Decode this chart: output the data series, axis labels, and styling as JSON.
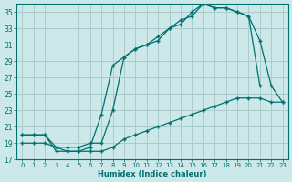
{
  "xlabel": "Humidex (Indice chaleur)",
  "bg_color": "#cce8e8",
  "grid_color": "#aacccc",
  "line_color": "#007070",
  "xlim": [
    -0.5,
    23.5
  ],
  "ylim": [
    17,
    36
  ],
  "yticks": [
    17,
    19,
    21,
    23,
    25,
    27,
    29,
    31,
    33,
    35
  ],
  "xticks": [
    0,
    1,
    2,
    3,
    4,
    5,
    6,
    7,
    8,
    9,
    10,
    11,
    12,
    13,
    14,
    15,
    16,
    17,
    18,
    19,
    20,
    21,
    22,
    23
  ],
  "series1_x": [
    0,
    1,
    2,
    3,
    4,
    5,
    6,
    7,
    8,
    9,
    10,
    11,
    12,
    13,
    14,
    15,
    16,
    17,
    18,
    19,
    20,
    21,
    22,
    23
  ],
  "series1_y": [
    19.0,
    19.0,
    19.0,
    18.5,
    18.0,
    18.0,
    18.0,
    18.0,
    18.5,
    19.5,
    20.0,
    20.5,
    21.0,
    21.5,
    22.0,
    22.5,
    23.0,
    23.5,
    24.0,
    24.5,
    24.5,
    24.5,
    24.0,
    24.0
  ],
  "series2_x": [
    0,
    1,
    2,
    3,
    4,
    5,
    6,
    7,
    8,
    9,
    10,
    11,
    12,
    13,
    14,
    15,
    16,
    17,
    18,
    19,
    20,
    21
  ],
  "series2_y": [
    20.0,
    20.0,
    20.0,
    18.0,
    18.0,
    18.0,
    18.5,
    22.5,
    28.5,
    29.5,
    30.5,
    31.0,
    31.5,
    33.0,
    33.5,
    35.0,
    36.0,
    35.5,
    35.5,
    35.0,
    34.5,
    26.0
  ],
  "series3_x": [
    0,
    1,
    2,
    3,
    4,
    5,
    6,
    7,
    8,
    9,
    10,
    11,
    12,
    13,
    14,
    15,
    16,
    17,
    18,
    19,
    20,
    21,
    22,
    23
  ],
  "series3_y": [
    20.0,
    20.0,
    20.0,
    18.5,
    18.5,
    18.5,
    19.0,
    19.0,
    23.0,
    29.5,
    30.5,
    31.0,
    32.0,
    33.0,
    34.0,
    34.5,
    36.0,
    35.5,
    35.5,
    35.0,
    34.5,
    31.5,
    26.0,
    24.0
  ]
}
